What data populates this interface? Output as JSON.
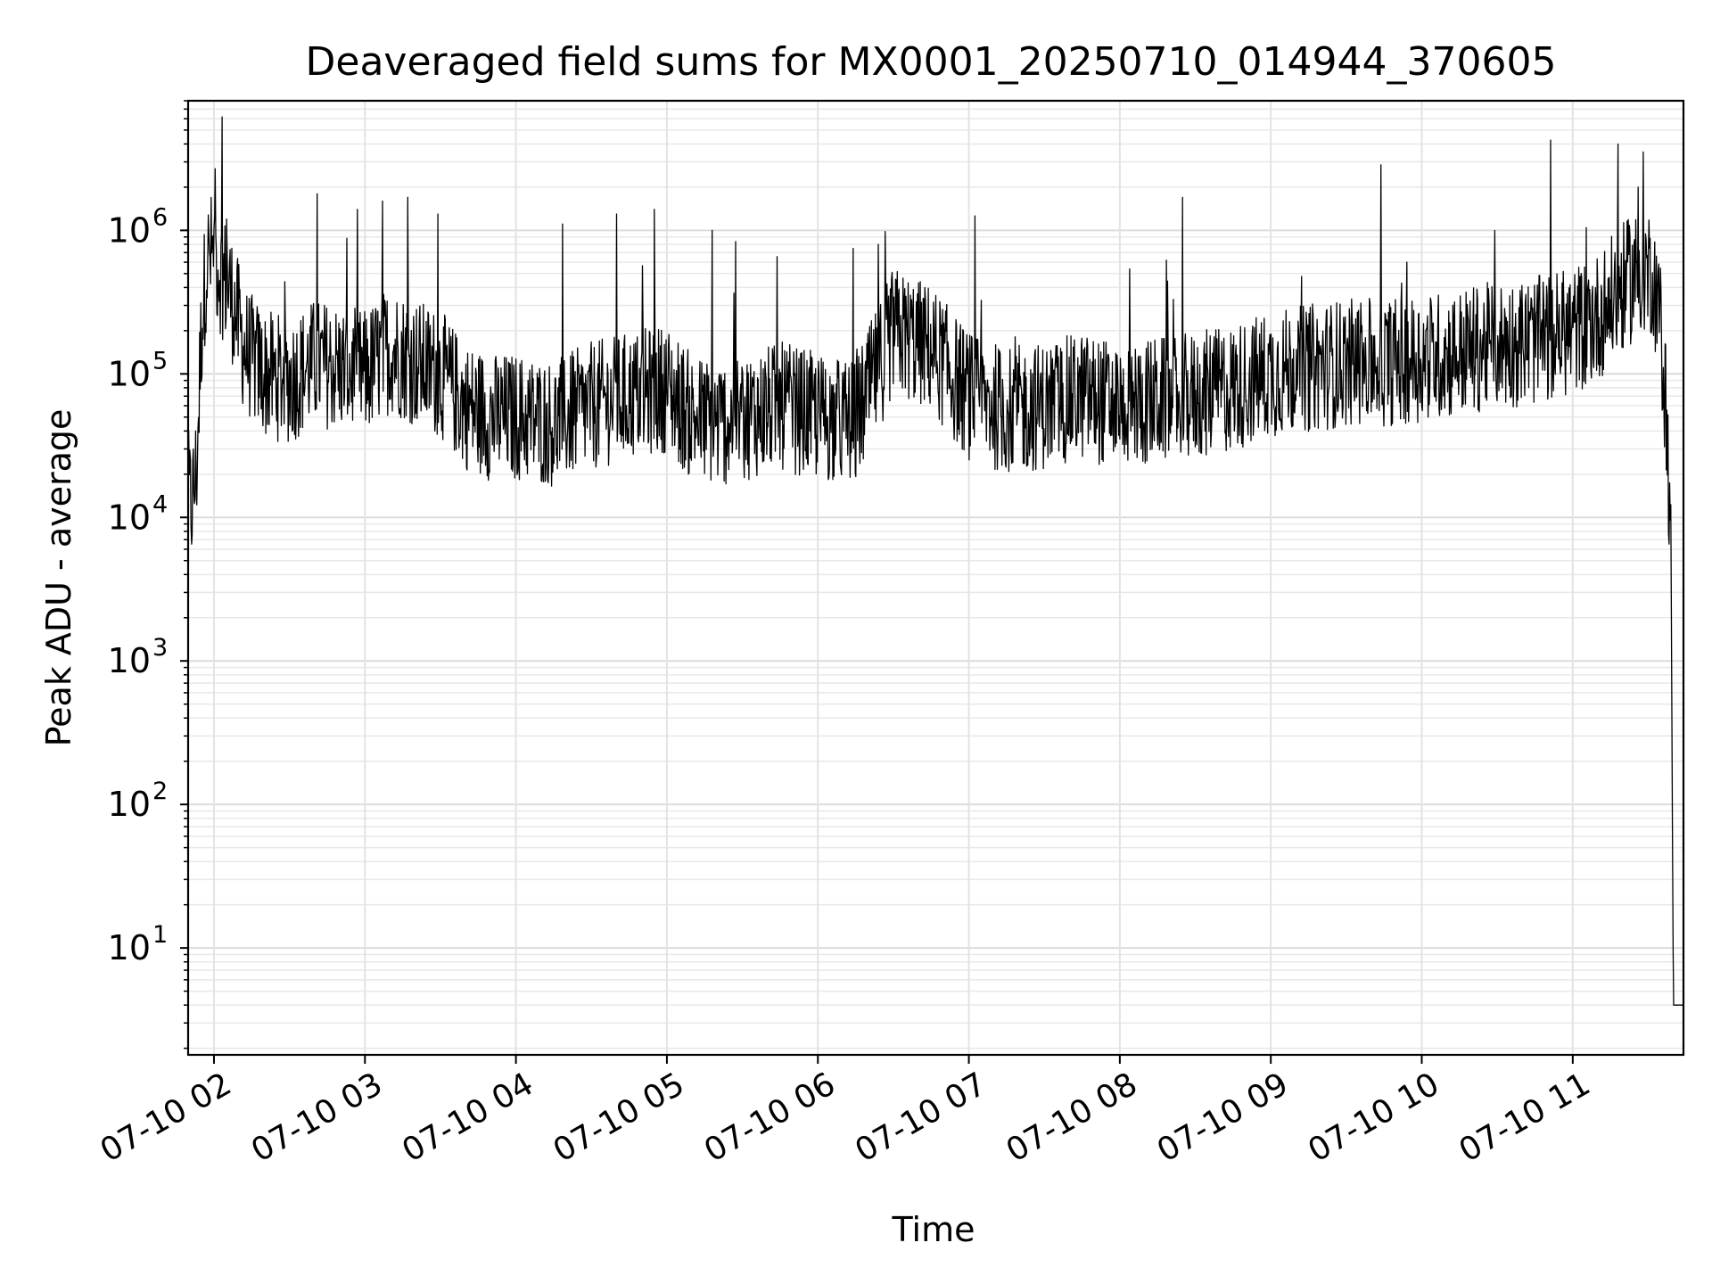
{
  "chart_data": {
    "type": "line",
    "title": "Deaveraged field sums for MX0001_20250710_014944_370605",
    "xlabel": "Time",
    "ylabel": "Peak ADU - average",
    "yscale": "log",
    "ylim": [
      1.8,
      8000000
    ],
    "xlim": [
      "2025-07-10 01:49:44",
      "2025-07-10 11:44:00"
    ],
    "grid": true,
    "legend": "none",
    "x_ticks": [
      "07-10 02",
      "07-10 03",
      "07-10 04",
      "07-10 05",
      "07-10 06",
      "07-10 07",
      "07-10 08",
      "07-10 09",
      "07-10 10",
      "07-10 11"
    ],
    "y_ticks": [
      {
        "base": "10",
        "exp": "1",
        "value": 10
      },
      {
        "base": "10",
        "exp": "2",
        "value": 100
      },
      {
        "base": "10",
        "exp": "3",
        "value": 1000
      },
      {
        "base": "10",
        "exp": "4",
        "value": 10000
      },
      {
        "base": "10",
        "exp": "5",
        "value": 100000
      },
      {
        "base": "10",
        "exp": "6",
        "value": 1000000
      }
    ],
    "series": [
      {
        "color": "#000000",
        "x": [
          "2025-07-10 01:49:44",
          "2025-07-10 01:51:00",
          "2025-07-10 01:53:00",
          "2025-07-10 01:55:00",
          "2025-07-10 01:57:00",
          "2025-07-10 02:00:00",
          "2025-07-10 02:03:00",
          "2025-07-10 02:06:00",
          "2025-07-10 02:09:00",
          "2025-07-10 02:12:00",
          "2025-07-10 02:20:00",
          "2025-07-10 02:30:00",
          "2025-07-10 02:40:00",
          "2025-07-10 02:50:00",
          "2025-07-10 03:00:00",
          "2025-07-10 03:10:00",
          "2025-07-10 03:20:00",
          "2025-07-10 03:30:00",
          "2025-07-10 03:40:00",
          "2025-07-10 03:50:00",
          "2025-07-10 04:00:00",
          "2025-07-10 04:15:00",
          "2025-07-10 04:30:00",
          "2025-07-10 04:45:00",
          "2025-07-10 05:00:00",
          "2025-07-10 05:10:00",
          "2025-07-10 05:20:00",
          "2025-07-10 05:30:00",
          "2025-07-10 05:45:00",
          "2025-07-10 06:00:00",
          "2025-07-10 06:15:00",
          "2025-07-10 06:30:00",
          "2025-07-10 06:45:00",
          "2025-07-10 07:00:00",
          "2025-07-10 07:15:00",
          "2025-07-10 07:30:00",
          "2025-07-10 07:45:00",
          "2025-07-10 08:00:00",
          "2025-07-10 08:15:00",
          "2025-07-10 08:30:00",
          "2025-07-10 08:45:00",
          "2025-07-10 09:00:00",
          "2025-07-10 09:15:00",
          "2025-07-10 09:30:00",
          "2025-07-10 09:45:00",
          "2025-07-10 10:00:00",
          "2025-07-10 10:15:00",
          "2025-07-10 10:30:00",
          "2025-07-10 10:45:00",
          "2025-07-10 11:00:00",
          "2025-07-10 11:10:00",
          "2025-07-10 11:20:00",
          "2025-07-10 11:28:00",
          "2025-07-10 11:32:00",
          "2025-07-10 11:35:00",
          "2025-07-10 11:37:00",
          "2025-07-10 11:39:00",
          "2025-07-10 11:40:00",
          "2025-07-10 11:41:00",
          "2025-07-10 11:44:00"
        ],
        "y": [
          15000,
          12000,
          20000,
          200000,
          600000,
          700000,
          500000,
          400000,
          250000,
          150000,
          100000,
          90000,
          120000,
          110000,
          100000,
          150000,
          120000,
          100000,
          60000,
          50000,
          50000,
          45000,
          60000,
          70000,
          80000,
          50000,
          45000,
          50000,
          60000,
          50000,
          45000,
          200000,
          150000,
          70000,
          55000,
          60000,
          70000,
          60000,
          65000,
          70000,
          80000,
          100000,
          110000,
          120000,
          120000,
          130000,
          140000,
          160000,
          170000,
          200000,
          250000,
          400000,
          550000,
          500000,
          200000,
          60000,
          8000,
          4,
          4,
          4
        ],
        "noise_decades": 0.45,
        "spikes": [
          {
            "x": "2025-07-10 02:05:00",
            "y": 1200000
          },
          {
            "x": "2025-07-10 02:41:00",
            "y": 1800000
          },
          {
            "x": "2025-07-10 02:57:00",
            "y": 1400000
          },
          {
            "x": "2025-07-10 03:07:00",
            "y": 1600000
          },
          {
            "x": "2025-07-10 03:17:00",
            "y": 1700000
          },
          {
            "x": "2025-07-10 03:29:00",
            "y": 1300000
          },
          {
            "x": "2025-07-10 04:40:00",
            "y": 1300000
          },
          {
            "x": "2025-07-10 04:55:00",
            "y": 1400000
          },
          {
            "x": "2025-07-10 05:18:00",
            "y": 1000000
          },
          {
            "x": "2025-07-10 06:14:00",
            "y": 750000
          },
          {
            "x": "2025-07-10 06:24:00",
            "y": 800000
          },
          {
            "x": "2025-07-10 11:18:00",
            "y": 4000000
          },
          {
            "x": "2025-07-10 11:26:00",
            "y": 2000000
          }
        ]
      }
    ]
  }
}
